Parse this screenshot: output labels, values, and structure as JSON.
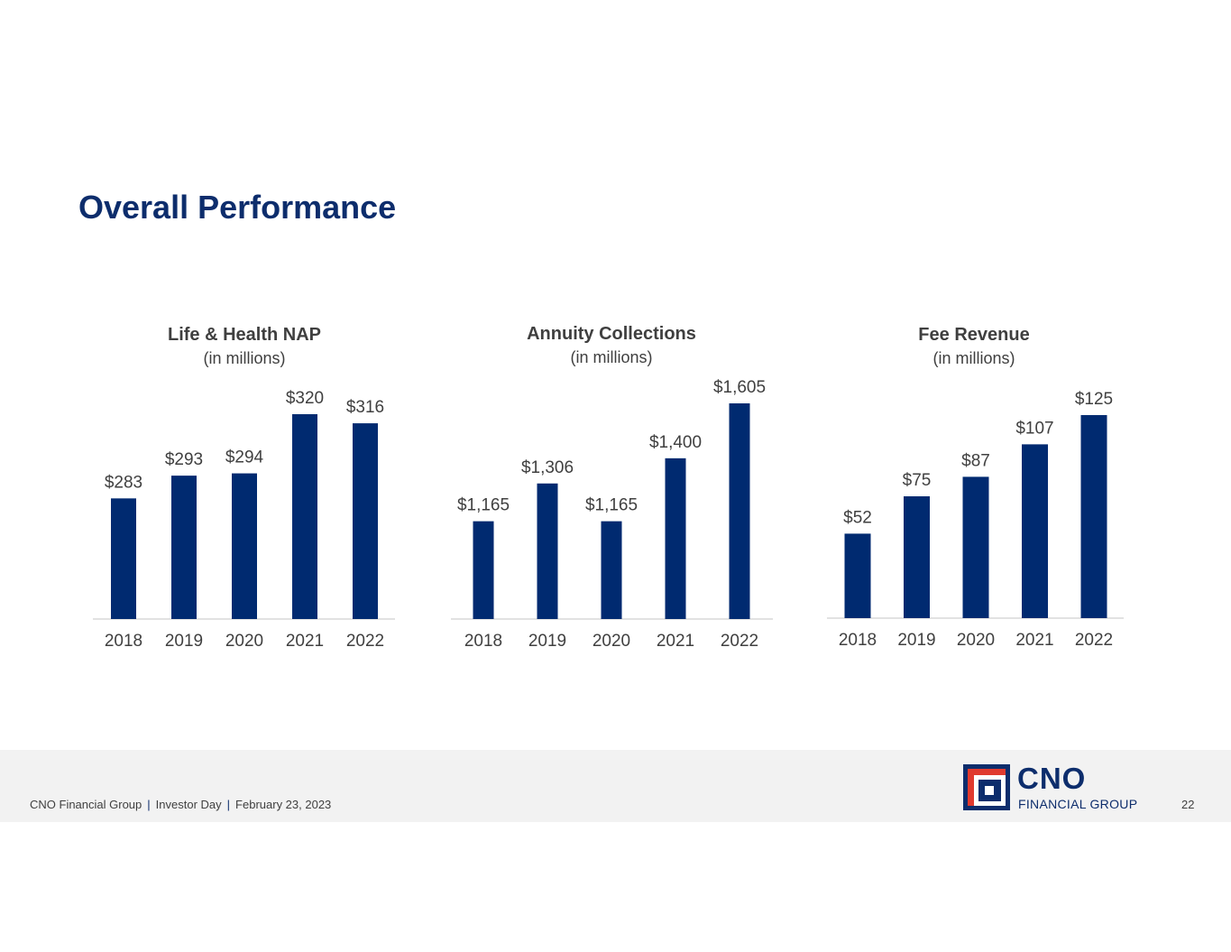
{
  "slide": {
    "title": "Overall Performance"
  },
  "colors": {
    "bar": "#002a70",
    "title": "#0d2d6c",
    "text": "#404040",
    "logo_red": "#e03a2f",
    "footer_bg": "#f2f2f2"
  },
  "chart_data": [
    {
      "type": "bar",
      "title": "Life & Health NAP",
      "subtitle": "(in millions)",
      "categories": [
        "2018",
        "2019",
        "2020",
        "2021",
        "2022"
      ],
      "values": [
        283,
        293,
        294,
        320,
        316
      ],
      "data_labels": [
        "$283",
        "$293",
        "$294",
        "$320",
        "$316"
      ],
      "ylim": [
        230,
        320
      ],
      "grid": false,
      "xlabel": "",
      "ylabel": ""
    },
    {
      "type": "bar",
      "title": "Annuity Collections",
      "subtitle": "(in millions)",
      "categories": [
        "2018",
        "2019",
        "2020",
        "2021",
        "2022"
      ],
      "values": [
        1165,
        1306,
        1165,
        1400,
        1605
      ],
      "data_labels": [
        "$1,165",
        "$1,306",
        "$1,165",
        "$1,400",
        "$1,605"
      ],
      "ylim": [
        800,
        1605
      ],
      "grid": false,
      "xlabel": "",
      "ylabel": ""
    },
    {
      "type": "bar",
      "title": "Fee Revenue",
      "subtitle": "(in millions)",
      "categories": [
        "2018",
        "2019",
        "2020",
        "2021",
        "2022"
      ],
      "values": [
        52,
        75,
        87,
        107,
        125
      ],
      "data_labels": [
        "$52",
        "$75",
        "$87",
        "$107",
        "$125"
      ],
      "ylim": [
        0,
        125
      ],
      "grid": false,
      "xlabel": "",
      "ylabel": ""
    }
  ],
  "footer": {
    "company": "CNO Financial Group",
    "event": "Investor Day",
    "date": "February 23, 2023",
    "separator": "|",
    "page_number": "22"
  },
  "logo": {
    "name": "CNO",
    "tagline": "FINANCIAL GROUP"
  }
}
